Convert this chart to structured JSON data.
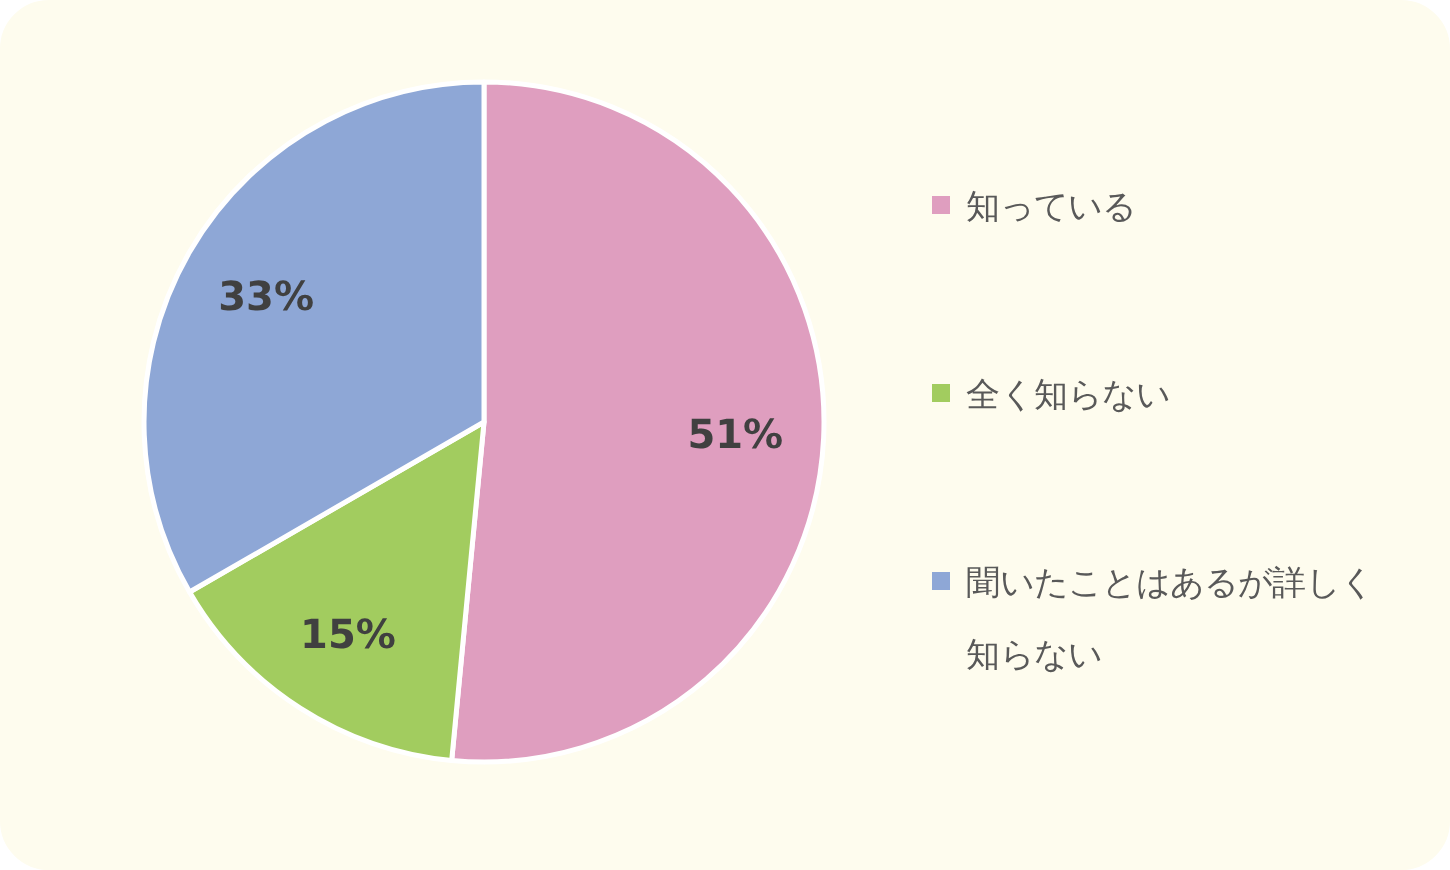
{
  "chart_data": {
    "type": "pie",
    "categories": [
      "知っている",
      "全く知らない",
      "聞いたことはあるが詳しく知らない"
    ],
    "values": [
      51,
      15,
      33
    ],
    "colors": [
      "#df9ebf",
      "#a2cc5f",
      "#8ea7d6"
    ],
    "value_labels": [
      "51%",
      "15%",
      "33%"
    ],
    "legend": "right"
  }
}
